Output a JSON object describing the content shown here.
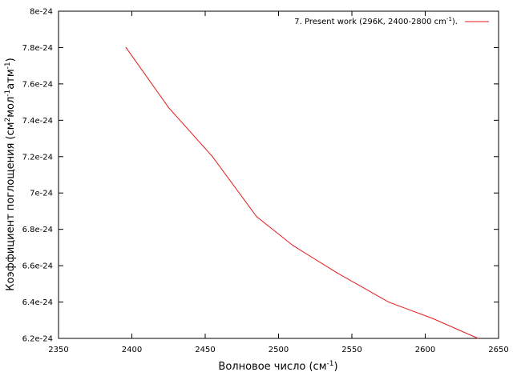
{
  "chart_data": {
    "type": "line",
    "xlabel": "Волновое число (см",
    "xlabel_sup": "-1",
    "xlabel_end": ")",
    "ylabel_parts": [
      "Коэффициент поглощения (см",
      "2",
      "мол",
      "-1",
      "атм",
      "-1",
      ")"
    ],
    "xlim": [
      2350,
      2650
    ],
    "ylim": [
      6.2e-24,
      8e-24
    ],
    "x_ticks": [
      2350,
      2400,
      2450,
      2500,
      2550,
      2600,
      2650
    ],
    "x_tick_labels": [
      "2350",
      "2400",
      "2450",
      "2500",
      "2550",
      "2600",
      "2650"
    ],
    "y_ticks": [
      6.2e-24,
      6.4e-24,
      6.6e-24,
      6.8e-24,
      7e-24,
      7.2e-24,
      7.4e-24,
      7.6e-24,
      7.8e-24,
      8e-24
    ],
    "y_tick_labels": [
      "6.2e-24",
      "6.4e-24",
      "6.6e-24",
      "6.8e-24",
      "7e-24",
      "7.2e-24",
      "7.4e-24",
      "7.6e-24",
      "7.8e-24",
      "8e-24"
    ],
    "grid": false,
    "legend_position": "top-right",
    "series": [
      {
        "name": "7. Present work (296K, 2400-2800 cm",
        "name_sup": "-1",
        "name_end": ").",
        "color": "#e41a1c",
        "x": [
          2396,
          2425,
          2455,
          2485,
          2510,
          2540,
          2575,
          2605,
          2636
        ],
        "y": [
          7.8e-24,
          7.47e-24,
          7.2e-24,
          6.87e-24,
          6.71e-24,
          6.56e-24,
          6.4e-24,
          6.31e-24,
          6.2e-24
        ]
      }
    ]
  }
}
